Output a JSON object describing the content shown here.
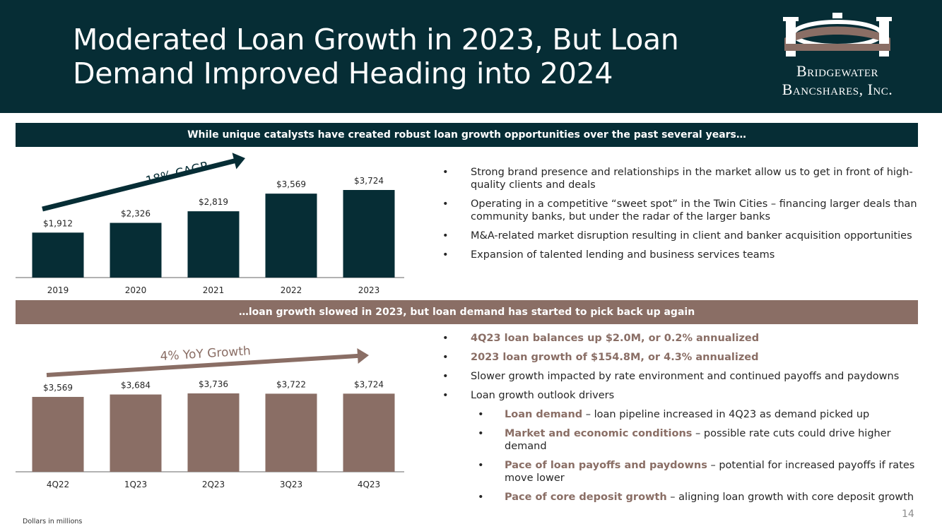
{
  "header": {
    "title_line1": "Moderated Loan Growth in 2023, But Loan",
    "title_line2": "Demand Improved Heading into 2024",
    "logo_line1": "Bridgewater",
    "logo_line2": "Bancshares, Inc.",
    "colors": {
      "dark": "#062d35",
      "accent": "#8a6e65"
    }
  },
  "section1": {
    "banner": "While unique catalysts have created robust loan growth opportunities over the past several years…",
    "trend_label": "18% CAGR",
    "bullets": [
      "Strong brand presence and relationships in the market allow us to get in front of high-quality clients and deals",
      "Operating in a competitive “sweet spot” in the Twin Cities – financing larger deals than community banks, but under the radar of the larger banks",
      "M&A-related market disruption resulting in client and banker acquisition opportunities",
      "Expansion of talented lending and business services teams"
    ]
  },
  "section2": {
    "banner": "…loan growth slowed in 2023, but loan demand has started to pick back up again",
    "trend_label": "4% YoY Growth",
    "bullets": [
      {
        "bold": "4Q23 loan balances up $2.0M, or 0.2% annualized",
        "text": "",
        "level": 1
      },
      {
        "bold": "2023 loan growth of $154.8M, or 4.3% annualized",
        "text": "",
        "level": 1
      },
      {
        "bold": "",
        "text": "Slower growth impacted by rate environment and continued payoffs and paydowns",
        "level": 1
      },
      {
        "bold": "",
        "text": "Loan growth outlook drivers",
        "level": 1
      },
      {
        "bold": "Loan demand",
        "text": " – loan pipeline increased in 4Q23 as demand picked up",
        "level": 2
      },
      {
        "bold": "Market and economic conditions",
        "text": " – possible rate cuts could drive higher demand",
        "level": 2
      },
      {
        "bold": "Pace of loan payoffs and paydowns",
        "text": " – potential for increased payoffs if rates move lower",
        "level": 2
      },
      {
        "bold": "Pace of core deposit growth",
        "text": " – aligning loan growth with core deposit growth",
        "level": 2
      }
    ]
  },
  "chart_data": [
    {
      "type": "bar",
      "categories": [
        "2019",
        "2020",
        "2021",
        "2022",
        "2023"
      ],
      "values": [
        1912,
        2326,
        2819,
        3569,
        3724
      ],
      "labels": [
        "$1,912",
        "$2,326",
        "$2,819",
        "$3,569",
        "$3,724"
      ],
      "color": "#062d35",
      "annotation": "18% CAGR"
    },
    {
      "type": "bar",
      "categories": [
        "4Q22",
        "1Q23",
        "2Q23",
        "3Q23",
        "4Q23"
      ],
      "values": [
        3569,
        3684,
        3736,
        3722,
        3724
      ],
      "labels": [
        "$3,569",
        "$3,684",
        "$3,736",
        "$3,722",
        "$3,724"
      ],
      "color": "#8a6e65",
      "annotation": "4% YoY Growth"
    }
  ],
  "footer": {
    "note": "Dollars in millions",
    "page": "14"
  }
}
